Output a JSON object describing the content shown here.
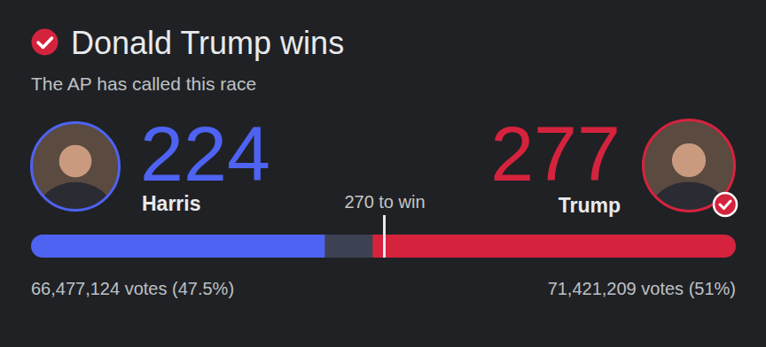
{
  "header": {
    "title": "Donald Trump wins",
    "subtitle": "The AP has called this race"
  },
  "chart_data": {
    "type": "bar",
    "orientation": "horizontal",
    "xlim": [
      0,
      538
    ],
    "tick_labels": false,
    "grid": false,
    "data_labels": true,
    "threshold": {
      "value": 270,
      "label": "270 to win"
    },
    "series": [
      {
        "name": "Harris",
        "color": "#4e63f2",
        "values": [
          224
        ],
        "votes_label": "66,477,124 votes (47.5%)"
      },
      {
        "name": "Trump",
        "color": "#d5233e",
        "values": [
          277
        ],
        "votes_label": "71,421,209 votes (51%)"
      }
    ]
  }
}
